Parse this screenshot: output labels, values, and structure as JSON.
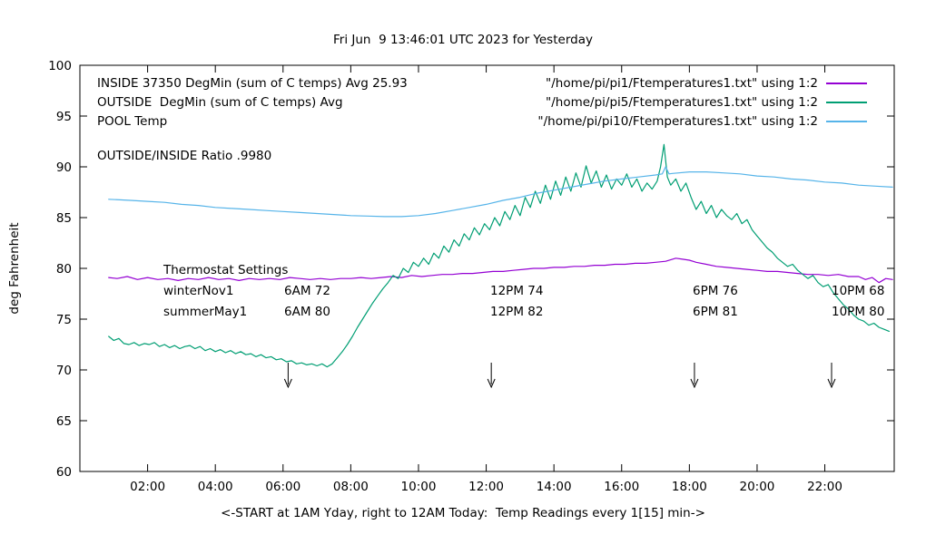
{
  "title": "Fri Jun  9 13:46:01 UTC 2023 for Yesterday",
  "ylabel": "deg Fahrenheit",
  "xlabel": "<-START at 1AM Yday, right to 12AM Today:  Temp Readings every 1[15] min->",
  "annotations": {
    "inside_note": "INSIDE 37350 DegMin (sum of C temps) Avg 25.93",
    "outside_note": "OUTSIDE  DegMin (sum of C temps) Avg",
    "pool_note": "POOL Temp",
    "ratio_note": "OUTSIDE/INSIDE Ratio .9980",
    "thermostat_title": "Thermostat Settings",
    "thermostat_rows": [
      {
        "name": "winterNov1",
        "c1": "6AM 72",
        "c2": "12PM 74",
        "c3": "6PM 76",
        "c4": "10PM 68"
      },
      {
        "name": "summerMay1",
        "c1": "6AM 80",
        "c2": "12PM 82",
        "c3": "6PM 81",
        "c4": "10PM 80"
      }
    ]
  },
  "legend": [
    {
      "label": "\"/home/pi/pi1/Ftemperatures1.txt\" using 1:2",
      "color": "#9400d3"
    },
    {
      "label": "\"/home/pi/pi5/Ftemperatures1.txt\" using 1:2",
      "color": "#009e73"
    },
    {
      "label": "\"/home/pi/pi10/Ftemperatures1.txt\" using 1:2",
      "color": "#56b4e9"
    }
  ],
  "chart_data": {
    "type": "line",
    "title": "Fri Jun  9 13:46:01 UTC 2023 for Yesterday",
    "xlabel": "<-START at 1AM Yday, right to 12AM Today:  Temp Readings every 1[15] min->",
    "ylabel": "deg Fahrenheit",
    "xlim": [
      0,
      24.05
    ],
    "ylim": [
      60,
      100
    ],
    "grid": false,
    "legend_position": "top-right",
    "yticks": [
      60,
      65,
      70,
      75,
      80,
      85,
      90,
      95,
      100
    ],
    "xticks": [
      {
        "h": 2,
        "label": "02:00"
      },
      {
        "h": 4,
        "label": "04:00"
      },
      {
        "h": 6,
        "label": "06:00"
      },
      {
        "h": 8,
        "label": "08:00"
      },
      {
        "h": 10,
        "label": "10:00"
      },
      {
        "h": 12,
        "label": "12:00"
      },
      {
        "h": 14,
        "label": "14:00"
      },
      {
        "h": 16,
        "label": "16:00"
      },
      {
        "h": 18,
        "label": "18:00"
      },
      {
        "h": 20,
        "label": "20:00"
      },
      {
        "h": 22,
        "label": "22:00"
      }
    ],
    "arrow_hours": [
      6.15,
      12.15,
      18.15,
      22.2
    ],
    "series": [
      {
        "name": "inside-pi1",
        "color": "#9400d3",
        "points": [
          [
            0.85,
            79.1
          ],
          [
            1.1,
            79.0
          ],
          [
            1.4,
            79.2
          ],
          [
            1.7,
            78.9
          ],
          [
            2.0,
            79.1
          ],
          [
            2.3,
            78.9
          ],
          [
            2.6,
            79.0
          ],
          [
            2.9,
            78.8
          ],
          [
            3.2,
            79.0
          ],
          [
            3.5,
            78.9
          ],
          [
            3.8,
            79.1
          ],
          [
            4.1,
            78.9
          ],
          [
            4.4,
            79.0
          ],
          [
            4.7,
            78.8
          ],
          [
            5.0,
            79.0
          ],
          [
            5.3,
            78.9
          ],
          [
            5.6,
            79.0
          ],
          [
            5.9,
            78.9
          ],
          [
            6.2,
            79.1
          ],
          [
            6.5,
            79.0
          ],
          [
            6.8,
            78.9
          ],
          [
            7.1,
            79.0
          ],
          [
            7.4,
            78.9
          ],
          [
            7.7,
            79.0
          ],
          [
            8.0,
            79.0
          ],
          [
            8.3,
            79.1
          ],
          [
            8.6,
            79.0
          ],
          [
            8.9,
            79.1
          ],
          [
            9.2,
            79.2
          ],
          [
            9.5,
            79.1
          ],
          [
            9.8,
            79.3
          ],
          [
            10.1,
            79.2
          ],
          [
            10.4,
            79.3
          ],
          [
            10.7,
            79.4
          ],
          [
            11.0,
            79.4
          ],
          [
            11.3,
            79.5
          ],
          [
            11.6,
            79.5
          ],
          [
            11.9,
            79.6
          ],
          [
            12.2,
            79.7
          ],
          [
            12.5,
            79.7
          ],
          [
            12.8,
            79.8
          ],
          [
            13.1,
            79.9
          ],
          [
            13.4,
            80.0
          ],
          [
            13.7,
            80.0
          ],
          [
            14.0,
            80.1
          ],
          [
            14.3,
            80.1
          ],
          [
            14.6,
            80.2
          ],
          [
            14.9,
            80.2
          ],
          [
            15.2,
            80.3
          ],
          [
            15.5,
            80.3
          ],
          [
            15.8,
            80.4
          ],
          [
            16.1,
            80.4
          ],
          [
            16.4,
            80.5
          ],
          [
            16.7,
            80.5
          ],
          [
            17.0,
            80.6
          ],
          [
            17.3,
            80.7
          ],
          [
            17.6,
            81.0
          ],
          [
            17.8,
            80.9
          ],
          [
            18.0,
            80.8
          ],
          [
            18.2,
            80.6
          ],
          [
            18.5,
            80.4
          ],
          [
            18.8,
            80.2
          ],
          [
            19.1,
            80.1
          ],
          [
            19.4,
            80.0
          ],
          [
            19.7,
            79.9
          ],
          [
            20.0,
            79.8
          ],
          [
            20.3,
            79.7
          ],
          [
            20.6,
            79.7
          ],
          [
            20.9,
            79.6
          ],
          [
            21.2,
            79.5
          ],
          [
            21.5,
            79.4
          ],
          [
            21.8,
            79.4
          ],
          [
            22.1,
            79.3
          ],
          [
            22.4,
            79.4
          ],
          [
            22.7,
            79.2
          ],
          [
            23.0,
            79.2
          ],
          [
            23.2,
            78.9
          ],
          [
            23.4,
            79.1
          ],
          [
            23.6,
            78.6
          ],
          [
            23.8,
            79.0
          ],
          [
            24.0,
            78.9
          ]
        ]
      },
      {
        "name": "outside-pi5",
        "color": "#009e73",
        "points": [
          [
            0.85,
            73.3
          ],
          [
            1.0,
            72.9
          ],
          [
            1.15,
            73.1
          ],
          [
            1.3,
            72.6
          ],
          [
            1.45,
            72.5
          ],
          [
            1.6,
            72.7
          ],
          [
            1.75,
            72.4
          ],
          [
            1.9,
            72.6
          ],
          [
            2.05,
            72.5
          ],
          [
            2.2,
            72.7
          ],
          [
            2.35,
            72.3
          ],
          [
            2.5,
            72.5
          ],
          [
            2.65,
            72.2
          ],
          [
            2.8,
            72.4
          ],
          [
            2.95,
            72.1
          ],
          [
            3.1,
            72.3
          ],
          [
            3.25,
            72.4
          ],
          [
            3.4,
            72.1
          ],
          [
            3.55,
            72.3
          ],
          [
            3.7,
            71.9
          ],
          [
            3.85,
            72.1
          ],
          [
            4.0,
            71.8
          ],
          [
            4.15,
            72.0
          ],
          [
            4.3,
            71.7
          ],
          [
            4.45,
            71.9
          ],
          [
            4.6,
            71.6
          ],
          [
            4.75,
            71.8
          ],
          [
            4.9,
            71.5
          ],
          [
            5.05,
            71.6
          ],
          [
            5.2,
            71.3
          ],
          [
            5.35,
            71.5
          ],
          [
            5.5,
            71.2
          ],
          [
            5.65,
            71.3
          ],
          [
            5.8,
            71.0
          ],
          [
            5.95,
            71.1
          ],
          [
            6.1,
            70.8
          ],
          [
            6.25,
            70.9
          ],
          [
            6.4,
            70.6
          ],
          [
            6.55,
            70.7
          ],
          [
            6.7,
            70.5
          ],
          [
            6.85,
            70.6
          ],
          [
            7.0,
            70.4
          ],
          [
            7.15,
            70.6
          ],
          [
            7.3,
            70.3
          ],
          [
            7.45,
            70.6
          ],
          [
            7.6,
            71.2
          ],
          [
            7.75,
            71.8
          ],
          [
            7.9,
            72.5
          ],
          [
            8.05,
            73.3
          ],
          [
            8.2,
            74.2
          ],
          [
            8.35,
            75.0
          ],
          [
            8.5,
            75.8
          ],
          [
            8.65,
            76.6
          ],
          [
            8.8,
            77.3
          ],
          [
            8.95,
            78.0
          ],
          [
            9.1,
            78.6
          ],
          [
            9.25,
            79.3
          ],
          [
            9.4,
            79.0
          ],
          [
            9.55,
            80.0
          ],
          [
            9.7,
            79.6
          ],
          [
            9.85,
            80.6
          ],
          [
            10.0,
            80.2
          ],
          [
            10.15,
            81.0
          ],
          [
            10.3,
            80.4
          ],
          [
            10.45,
            81.5
          ],
          [
            10.6,
            81.0
          ],
          [
            10.75,
            82.2
          ],
          [
            10.9,
            81.6
          ],
          [
            11.05,
            82.8
          ],
          [
            11.2,
            82.2
          ],
          [
            11.35,
            83.4
          ],
          [
            11.5,
            82.8
          ],
          [
            11.65,
            84.0
          ],
          [
            11.8,
            83.3
          ],
          [
            11.95,
            84.4
          ],
          [
            12.1,
            83.8
          ],
          [
            12.25,
            85.0
          ],
          [
            12.4,
            84.2
          ],
          [
            12.55,
            85.6
          ],
          [
            12.7,
            84.8
          ],
          [
            12.85,
            86.2
          ],
          [
            13.0,
            85.2
          ],
          [
            13.15,
            87.0
          ],
          [
            13.3,
            86.0
          ],
          [
            13.45,
            87.6
          ],
          [
            13.6,
            86.4
          ],
          [
            13.75,
            88.2
          ],
          [
            13.9,
            86.8
          ],
          [
            14.05,
            88.6
          ],
          [
            14.2,
            87.2
          ],
          [
            14.35,
            89.0
          ],
          [
            14.5,
            87.6
          ],
          [
            14.65,
            89.4
          ],
          [
            14.8,
            88.0
          ],
          [
            14.95,
            90.1
          ],
          [
            15.1,
            88.4
          ],
          [
            15.25,
            89.6
          ],
          [
            15.4,
            88.0
          ],
          [
            15.55,
            89.2
          ],
          [
            15.7,
            87.8
          ],
          [
            15.85,
            88.8
          ],
          [
            16.0,
            88.2
          ],
          [
            16.15,
            89.3
          ],
          [
            16.3,
            88.0
          ],
          [
            16.45,
            88.8
          ],
          [
            16.6,
            87.6
          ],
          [
            16.75,
            88.4
          ],
          [
            16.9,
            87.8
          ],
          [
            17.05,
            88.6
          ],
          [
            17.15,
            90.0
          ],
          [
            17.25,
            92.2
          ],
          [
            17.35,
            89.0
          ],
          [
            17.45,
            88.2
          ],
          [
            17.6,
            88.8
          ],
          [
            17.75,
            87.6
          ],
          [
            17.9,
            88.4
          ],
          [
            18.05,
            87.0
          ],
          [
            18.2,
            85.8
          ],
          [
            18.35,
            86.6
          ],
          [
            18.5,
            85.4
          ],
          [
            18.65,
            86.2
          ],
          [
            18.8,
            85.0
          ],
          [
            18.95,
            85.8
          ],
          [
            19.1,
            85.2
          ],
          [
            19.25,
            84.8
          ],
          [
            19.4,
            85.4
          ],
          [
            19.55,
            84.4
          ],
          [
            19.7,
            84.8
          ],
          [
            19.85,
            83.8
          ],
          [
            20.0,
            83.2
          ],
          [
            20.15,
            82.6
          ],
          [
            20.3,
            82.0
          ],
          [
            20.45,
            81.6
          ],
          [
            20.6,
            81.0
          ],
          [
            20.75,
            80.6
          ],
          [
            20.9,
            80.2
          ],
          [
            21.05,
            80.4
          ],
          [
            21.2,
            79.8
          ],
          [
            21.35,
            79.4
          ],
          [
            21.5,
            79.0
          ],
          [
            21.65,
            79.3
          ],
          [
            21.8,
            78.6
          ],
          [
            21.95,
            78.2
          ],
          [
            22.1,
            78.4
          ],
          [
            22.25,
            77.6
          ],
          [
            22.4,
            77.0
          ],
          [
            22.55,
            76.4
          ],
          [
            22.7,
            76.0
          ],
          [
            22.85,
            75.4
          ],
          [
            23.0,
            75.0
          ],
          [
            23.15,
            74.8
          ],
          [
            23.3,
            74.4
          ],
          [
            23.45,
            74.6
          ],
          [
            23.6,
            74.2
          ],
          [
            23.75,
            74.0
          ],
          [
            23.9,
            73.8
          ]
        ]
      },
      {
        "name": "pool-pi10",
        "color": "#56b4e9",
        "points": [
          [
            0.85,
            86.8
          ],
          [
            1.5,
            86.7
          ],
          [
            2.0,
            86.6
          ],
          [
            2.5,
            86.5
          ],
          [
            3.0,
            86.3
          ],
          [
            3.5,
            86.2
          ],
          [
            4.0,
            86.0
          ],
          [
            4.5,
            85.9
          ],
          [
            5.0,
            85.8
          ],
          [
            5.5,
            85.7
          ],
          [
            6.0,
            85.6
          ],
          [
            6.5,
            85.5
          ],
          [
            7.0,
            85.4
          ],
          [
            7.5,
            85.3
          ],
          [
            8.0,
            85.2
          ],
          [
            8.5,
            85.15
          ],
          [
            9.0,
            85.1
          ],
          [
            9.5,
            85.1
          ],
          [
            10.0,
            85.2
          ],
          [
            10.5,
            85.4
          ],
          [
            11.0,
            85.7
          ],
          [
            11.5,
            86.0
          ],
          [
            12.0,
            86.3
          ],
          [
            12.5,
            86.7
          ],
          [
            13.0,
            87.0
          ],
          [
            13.5,
            87.4
          ],
          [
            14.0,
            87.7
          ],
          [
            14.5,
            88.0
          ],
          [
            15.0,
            88.3
          ],
          [
            15.5,
            88.6
          ],
          [
            16.0,
            88.8
          ],
          [
            16.5,
            89.0
          ],
          [
            17.0,
            89.2
          ],
          [
            17.2,
            89.3
          ],
          [
            17.3,
            90.0
          ],
          [
            17.4,
            89.3
          ],
          [
            17.5,
            89.35
          ],
          [
            18.0,
            89.5
          ],
          [
            18.5,
            89.5
          ],
          [
            19.0,
            89.4
          ],
          [
            19.5,
            89.3
          ],
          [
            20.0,
            89.1
          ],
          [
            20.5,
            89.0
          ],
          [
            21.0,
            88.8
          ],
          [
            21.5,
            88.7
          ],
          [
            22.0,
            88.5
          ],
          [
            22.5,
            88.4
          ],
          [
            23.0,
            88.2
          ],
          [
            23.5,
            88.1
          ],
          [
            24.0,
            88.0
          ]
        ]
      }
    ]
  }
}
